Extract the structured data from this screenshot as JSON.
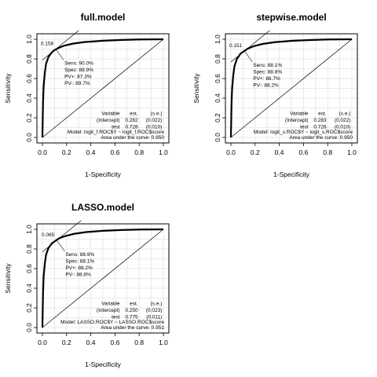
{
  "chart_data": [
    {
      "type": "line",
      "title": "full.model",
      "xlabel": "1-Specificity",
      "ylabel": "Sensitivity",
      "xlim": [
        0,
        1
      ],
      "ylim": [
        0,
        1
      ],
      "x_ticks": [
        "0.0",
        "0.2",
        "0.4",
        "0.6",
        "0.8",
        "1.0"
      ],
      "y_ticks": [
        "0.0",
        "0.2",
        "0.4",
        "0.6",
        "0.8",
        "1.0"
      ],
      "grid": true,
      "series": [
        {
          "x": [
            0,
            0.005,
            0.01,
            0.02,
            0.03,
            0.05,
            0.08,
            0.1,
            0.13,
            0.18,
            0.25,
            0.35,
            0.5,
            0.65,
            0.8,
            1.0
          ],
          "y": [
            0,
            0.35,
            0.52,
            0.66,
            0.75,
            0.82,
            0.87,
            0.89,
            0.91,
            0.935,
            0.955,
            0.972,
            0.985,
            0.993,
            0.998,
            1.0
          ]
        }
      ],
      "cutoff": {
        "x": 0.111,
        "y": 0.9,
        "label": "0.158"
      },
      "stats": [
        "Sens: 90.0%",
        "Spec: 88.9%",
        "PV+: 87.3%",
        "PV-: 89.7%"
      ],
      "table": {
        "header": [
          "Variable",
          "est.",
          "(s.e.)"
        ],
        "rows": [
          [
            "(Intercept)",
            "0.282",
            "(0.022)"
          ],
          [
            "test",
            "0.728",
            "(0.010)"
          ]
        ]
      },
      "model": "Model:  logit_f.ROC$Y ~ logit_f.ROC$score",
      "auc": "Area under the curve: 0.950"
    },
    {
      "type": "line",
      "title": "stepwise.model",
      "xlabel": "1-Specificity",
      "ylabel": "Sensitivity",
      "xlim": [
        0,
        1
      ],
      "ylim": [
        0,
        1
      ],
      "x_ticks": [
        "0.0",
        "0.2",
        "0.4",
        "0.6",
        "0.8",
        "1.0"
      ],
      "y_ticks": [
        "0.0",
        "0.2",
        "0.4",
        "0.6",
        "0.8",
        "1.0"
      ],
      "grid": true,
      "series": [
        {
          "x": [
            0,
            0.005,
            0.01,
            0.02,
            0.03,
            0.05,
            0.08,
            0.11,
            0.14,
            0.19,
            0.26,
            0.36,
            0.5,
            0.65,
            0.8,
            1.0
          ],
          "y": [
            0,
            0.34,
            0.5,
            0.64,
            0.73,
            0.8,
            0.855,
            0.88,
            0.905,
            0.93,
            0.952,
            0.97,
            0.984,
            0.992,
            0.998,
            1.0
          ]
        }
      ],
      "cutoff": {
        "x": 0.112,
        "y": 0.881,
        "label": "0.151"
      },
      "stats": [
        "Sens: 88.1%",
        "Spec: 88.8%",
        "PV+: 88.7%",
        "PV-: 88.2%"
      ],
      "table": {
        "header": [
          "Variable",
          "est.",
          "(s.e.)"
        ],
        "rows": [
          [
            "(Intercept)",
            "0.283",
            "(0.022)"
          ],
          [
            "test",
            "0.726",
            "(0.010)"
          ]
        ]
      },
      "model": "Model:  logit_s.ROC$Y ~ logit_s.ROC$score",
      "auc": "Area under the curve: 0.950"
    },
    {
      "type": "line",
      "title": "LASSO.model",
      "xlabel": "1-Specificity",
      "ylabel": "Sensitivity",
      "xlim": [
        0,
        1
      ],
      "ylim": [
        0,
        1
      ],
      "x_ticks": [
        "0.0",
        "0.2",
        "0.4",
        "0.6",
        "0.8",
        "1.0"
      ],
      "y_ticks": [
        "0.0",
        "0.2",
        "0.4",
        "0.6",
        "0.8",
        "1.0"
      ],
      "grid": true,
      "series": [
        {
          "x": [
            0,
            0.005,
            0.01,
            0.02,
            0.03,
            0.05,
            0.08,
            0.11,
            0.14,
            0.19,
            0.26,
            0.36,
            0.5,
            0.65,
            0.8,
            1.0
          ],
          "y": [
            0,
            0.35,
            0.52,
            0.65,
            0.74,
            0.81,
            0.86,
            0.885,
            0.91,
            0.932,
            0.954,
            0.972,
            0.985,
            0.993,
            0.998,
            1.0
          ]
        }
      ],
      "cutoff": {
        "x": 0.119,
        "y": 0.889,
        "label": "0.065"
      },
      "stats": [
        "Sens: 88.9%",
        "Spec: 88.1%",
        "PV+: 88.2%",
        "PV-: 88.8%"
      ],
      "table": {
        "header": [
          "Variable",
          "est.",
          "(s.e.)"
        ],
        "rows": [
          [
            "(Intercept)",
            "0.250",
            "(0.023)"
          ],
          [
            "test",
            "0.775",
            "(0.011)"
          ]
        ]
      },
      "model": "Model:  LASSO.ROC$Y ~ LASSO.ROC$score",
      "auc": "Area under the curve: 0.951"
    }
  ]
}
